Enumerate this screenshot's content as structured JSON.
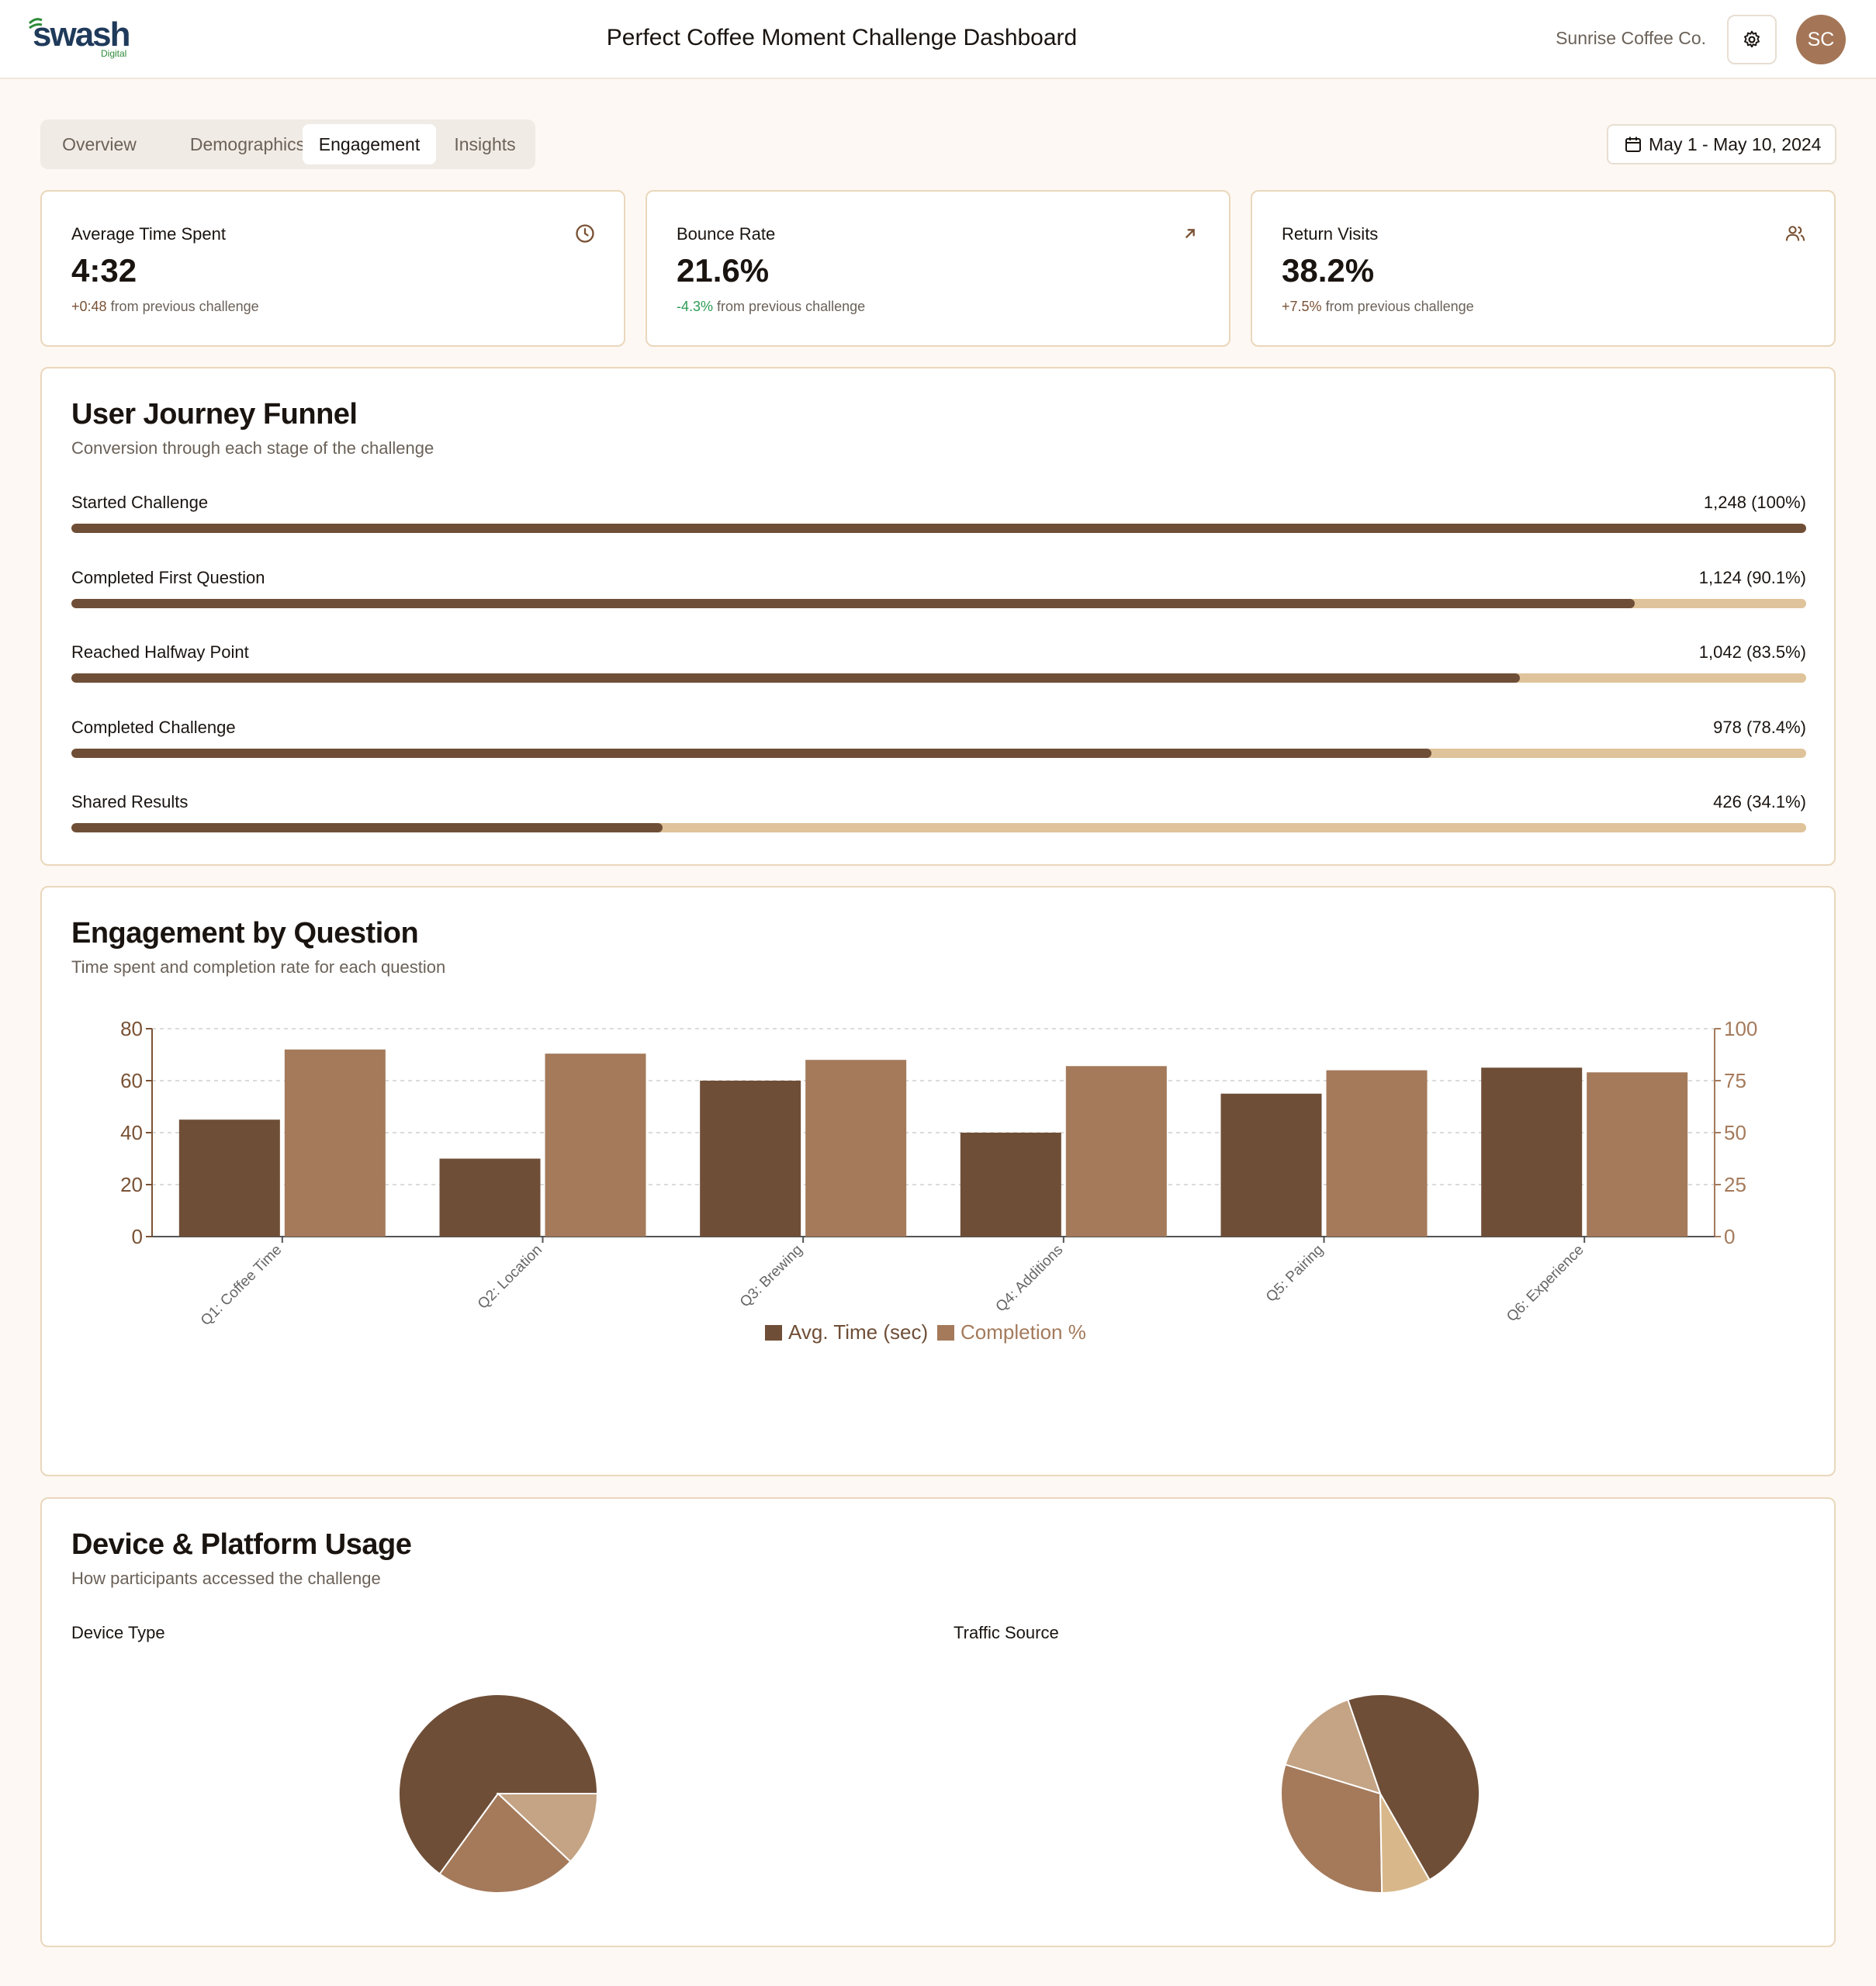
{
  "header": {
    "logo_text": "swash",
    "logo_sub": "Digital",
    "title": "Perfect Coffee Moment Challenge Dashboard",
    "company": "Sunrise Coffee Co.",
    "avatar_initials": "SC",
    "settings_icon": "gear-icon"
  },
  "tabs": [
    {
      "label": "Overview",
      "active": false
    },
    {
      "label": "Demographics",
      "active": false
    },
    {
      "label": "Engagement",
      "active": true
    },
    {
      "label": "Insights",
      "active": false
    }
  ],
  "date_range": "May 1 - May 10, 2024",
  "kpis": [
    {
      "label": "Average Time Spent",
      "value": "4:32",
      "change": "+0:48",
      "change_suffix": "from previous challenge",
      "icon": "clock-icon",
      "change_color": "#7a5235"
    },
    {
      "label": "Bounce Rate",
      "value": "21.6%",
      "change": "-4.3%",
      "change_suffix": "from previous challenge",
      "icon": "arrow-up-right-icon",
      "change_color": "#2e9c55"
    },
    {
      "label": "Return Visits",
      "value": "38.2%",
      "change": "+7.5%",
      "change_suffix": "from previous challenge",
      "icon": "users-icon",
      "change_color": "#7a5235"
    }
  ],
  "funnel": {
    "title": "User Journey Funnel",
    "subtitle": "Conversion through each stage of the challenge",
    "stages": [
      {
        "label": "Started Challenge",
        "value": "1,248 (100%)",
        "percent": 100
      },
      {
        "label": "Completed First Question",
        "value": "1,124 (90.1%)",
        "percent": 90.1
      },
      {
        "label": "Reached Halfway Point",
        "value": "1,042 (83.5%)",
        "percent": 83.5
      },
      {
        "label": "Completed Challenge",
        "value": "978 (78.4%)",
        "percent": 78.4
      },
      {
        "label": "Shared Results",
        "value": "426 (34.1%)",
        "percent": 34.1
      }
    ]
  },
  "engagement": {
    "title": "Engagement by Question",
    "subtitle": "Time spent and completion rate for each question"
  },
  "device": {
    "title": "Device & Platform Usage",
    "subtitle": "How participants accessed the challenge",
    "device_type_label": "Device Type",
    "traffic_source_label": "Traffic Source"
  },
  "colors": {
    "dark_brown": "#6f4e37",
    "mid_brown": "#a47a5b",
    "light_brown": "#c4a484",
    "sand": "#d8b88a",
    "track": "#dfc39a"
  },
  "chart_data": [
    {
      "type": "bar",
      "categories": [
        "Q1: Coffee Time",
        "Q2: Location",
        "Q3: Brewing",
        "Q4: Additions",
        "Q5: Pairing",
        "Q6: Experience"
      ],
      "series": [
        {
          "name": "Avg. Time (sec)",
          "values": [
            45,
            30,
            60,
            40,
            55,
            65
          ],
          "axis": "left",
          "color": "#6f4e37"
        },
        {
          "name": "Completion %",
          "values": [
            90,
            88,
            85,
            82,
            80,
            79
          ],
          "axis": "right",
          "color": "#a47a5b"
        }
      ],
      "ylim_left": [
        0,
        80
      ],
      "yticks_left": [
        0,
        20,
        40,
        60,
        80
      ],
      "ylim_right": [
        0,
        100
      ],
      "yticks_right": [
        0,
        25,
        50,
        75,
        100
      ],
      "grid": true,
      "legend": "bottom-center"
    },
    {
      "type": "pie",
      "slices": [
        {
          "value": 65,
          "color": "#6f4e37"
        },
        {
          "value": 23,
          "color": "#a47a5b"
        },
        {
          "value": 12,
          "color": "#c4a484"
        }
      ],
      "start_angle_deg": 0
    },
    {
      "type": "pie",
      "slices": [
        {
          "value": 15,
          "color": "#c4a484"
        },
        {
          "value": 30,
          "color": "#a47a5b"
        },
        {
          "value": 8,
          "color": "#d8b88a"
        },
        {
          "value": 47,
          "color": "#6f4e37"
        }
      ],
      "start_angle_deg": 109
    }
  ]
}
